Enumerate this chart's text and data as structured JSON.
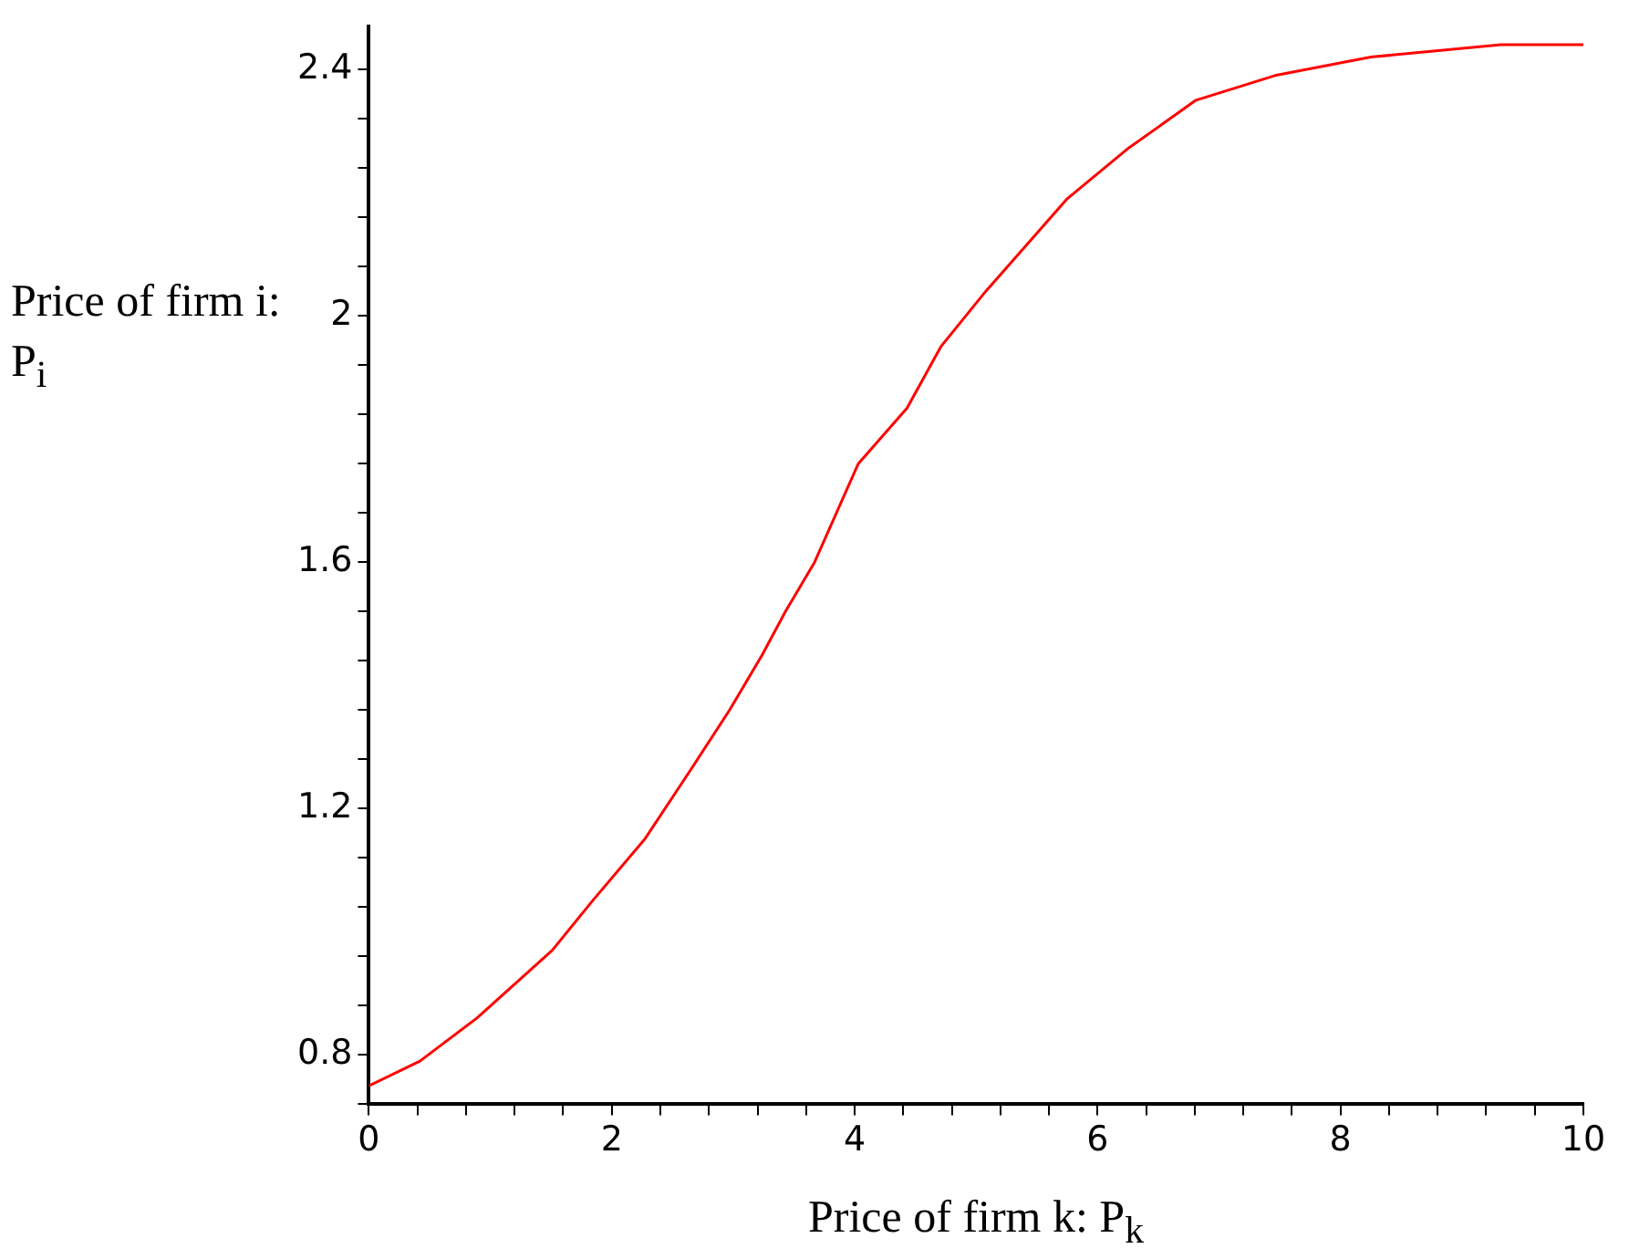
{
  "chart_data": {
    "type": "line",
    "xlabel": "Price of  firm k: P$_{k}$",
    "ylabel": "Price of firm i: P$_{i}$",
    "series": [
      {
        "color": "#ff0000",
        "x": [
          0,
          0.42,
          0.89,
          1.51,
          1.84,
          2.27,
          2.64,
          2.97,
          3.24,
          3.43,
          3.67,
          4.03,
          4.43,
          4.71,
          5.08,
          5.75,
          6.24,
          6.81,
          7.46,
          8.25,
          9.32,
          10
        ],
        "values": [
          0.75,
          0.79,
          0.86,
          0.97,
          1.05,
          1.15,
          1.26,
          1.36,
          1.45,
          1.52,
          1.6,
          1.76,
          1.85,
          1.95,
          2.04,
          2.19,
          2.27,
          2.35,
          2.39,
          2.42,
          2.44,
          2.44
        ]
      }
    ],
    "xlim": [
      0,
      10
    ],
    "ylim": [
      0.72,
      2.47
    ],
    "xticks": [
      0,
      {
        "value": 0.4,
        "label": null
      },
      {
        "value": 0.8,
        "label": null
      },
      {
        "value": 1.2,
        "label": null
      },
      {
        "value": 1.6,
        "label": null
      },
      2,
      {
        "value": 2.4,
        "label": null
      },
      {
        "value": 2.8,
        "label": null
      },
      {
        "value": 3.2,
        "label": null
      },
      {
        "value": 3.6,
        "label": null
      },
      4,
      {
        "value": 4.4,
        "label": null
      },
      {
        "value": 4.8,
        "label": null
      },
      {
        "value": 5.2,
        "label": null
      },
      {
        "value": 5.6,
        "label": null
      },
      6,
      {
        "value": 6.4,
        "label": null
      },
      {
        "value": 6.8,
        "label": null
      },
      {
        "value": 7.2,
        "label": null
      },
      {
        "value": 7.6,
        "label": null
      },
      8,
      {
        "value": 8.4,
        "label": null
      },
      {
        "value": 8.8,
        "label": null
      },
      {
        "value": 9.2,
        "label": null
      },
      {
        "value": 9.6,
        "label": null
      },
      10
    ],
    "yticks": [
      {
        "value": 0.72,
        "label": null
      },
      {
        "value": 0.8,
        "label": "0.8"
      },
      {
        "value": 0.88,
        "label": null
      },
      {
        "value": 0.96,
        "label": null
      },
      {
        "value": 1.04,
        "label": null
      },
      {
        "value": 1.12,
        "label": null
      },
      {
        "value": 1.2,
        "label": "1.2"
      },
      {
        "value": 1.28,
        "label": null
      },
      {
        "value": 1.36,
        "label": null
      },
      {
        "value": 1.44,
        "label": null
      },
      {
        "value": 1.52,
        "label": null
      },
      {
        "value": 1.6,
        "label": "1.6"
      },
      {
        "value": 1.68,
        "label": null
      },
      {
        "value": 1.76,
        "label": null
      },
      {
        "value": 1.84,
        "label": null
      },
      {
        "value": 1.92,
        "label": null
      },
      {
        "value": 2,
        "label": "2"
      },
      {
        "value": 2.08,
        "label": null
      },
      {
        "value": 2.16,
        "label": null
      },
      {
        "value": 2.24,
        "label": null
      },
      {
        "value": 2.32,
        "label": null
      },
      {
        "value": 2.4,
        "label": "2.4"
      }
    ],
    "grid": false,
    "legend": false,
    "marker": "none",
    "line_style": "solid"
  }
}
